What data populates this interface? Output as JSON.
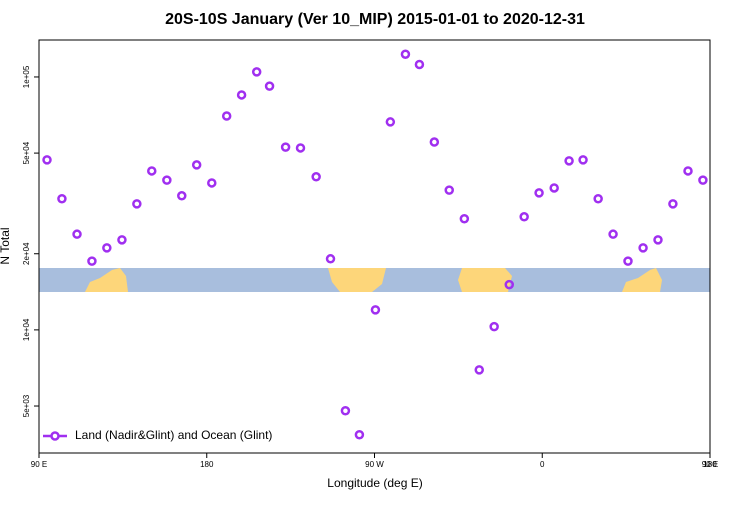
{
  "chart_data": {
    "type": "scatter",
    "title": "20S-10S January (Ver 10_MIP)   2015-01-01 to 2020-12-31",
    "xlabel": "Longitude (deg E)",
    "ylabel": "N Total",
    "series": [
      {
        "name": "Land (Nadir&Glint) and Ocean (Glint)",
        "color": "#a02ff0",
        "x": [
          94.3,
          102.3,
          110.4,
          118.4,
          126.4,
          134.5,
          142.5,
          150.5,
          158.6,
          166.6,
          174.6,
          182.7,
          190.7,
          198.7,
          206.8,
          213.7,
          222.3,
          230.3,
          238.7,
          246.4,
          254.4,
          261.9,
          270.5,
          278.5,
          286.6,
          294.1,
          302.1,
          310.1,
          318.2,
          326.2,
          334.2,
          342.3,
          350.3,
          358.3,
          366.4,
          374.4,
          381.9,
          390.0,
          398.0,
          406.0,
          414.1,
          422.1,
          430.1,
          438.2,
          446.2
        ],
        "values": [
          47000,
          33000,
          23900,
          18700,
          21100,
          22700,
          31500,
          42500,
          39100,
          33900,
          44900,
          38100,
          70100,
          84900,
          104700,
          92000,
          52800,
          52400,
          40300,
          19100,
          4790,
          3850,
          12000,
          66400,
          123000,
          112000,
          55300,
          35700,
          27500,
          6950,
          10300,
          15100,
          28000,
          34800,
          36400,
          46600,
          47000,
          33000,
          23900,
          18700,
          21100,
          22700,
          31500,
          42500,
          39100
        ]
      }
    ],
    "xlim": [
      90,
      450
    ],
    "xticks": [
      {
        "value": 90,
        "label": "90 E"
      },
      180,
      {
        "value": 270,
        "label": "90 W"
      },
      {
        "value": 360,
        "label": "0"
      },
      {
        "value": 450,
        "label": "90 E"
      },
      {
        "value": 540,
        "label": "180"
      }
    ],
    "ylim": [
      3260,
      140000
    ],
    "ylog": true,
    "yticks": [
      {
        "value": 5000,
        "label": "5e+03"
      },
      {
        "value": 10000,
        "label": "1e+04"
      },
      {
        "value": 20000,
        "label": "2e+04"
      },
      {
        "value": 50000,
        "label": "5e+04"
      },
      {
        "value": 100000,
        "label": "1e+05"
      }
    ],
    "legend": "bottom-left"
  }
}
